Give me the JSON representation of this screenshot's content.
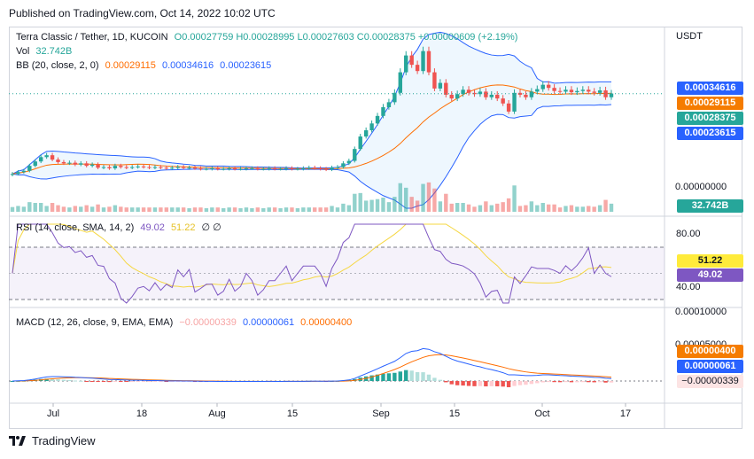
{
  "header": {
    "published": "Published on TradingView.com, Oct 14, 2022 10:02 UTC"
  },
  "legend": {
    "symbol": "Terra Classic / Tether, 1D, KUCOIN",
    "ohlc": "O0.00027759 H0.00028995 L0.00027603 C0.00028375 +0.00000609 (+2.19%)",
    "vol_label": "Vol",
    "vol_value": "32.742B",
    "bb_label": "BB (20, close, 2, 0)",
    "bb_basis": "0.00029115",
    "bb_upper": "0.00034616",
    "bb_lower": "0.00023615",
    "rsi_label": "RSI (14, close, SMA, 14, 2)",
    "rsi_value": "49.02",
    "rsi_sma": "51.22",
    "rsi_extra": "∅ ∅",
    "macd_label": "MACD (12, 26, close, 9, EMA, EMA)",
    "macd_hist": "−0.00000339",
    "macd_line": "0.00000061",
    "macd_signal": "0.00000400"
  },
  "price_axis": {
    "currency": "USDT",
    "zero": "0.00000000",
    "tag_upper": "0.00034616",
    "tag_basis": "0.00029115",
    "tag_close": "0.00028375",
    "tag_lower": "0.00023615",
    "tag_vol": "32.742B"
  },
  "rsi_axis": {
    "top": "80.00",
    "bottom": "40.00",
    "tag_sma": "51.22",
    "tag_rsi": "49.02"
  },
  "macd_axis": {
    "top": "0.00010000",
    "mid": "0.00005000",
    "tag_signal": "0.00000400",
    "tag_line": "0.00000061",
    "tag_hist": "−0.00000339"
  },
  "x_axis": [
    "Jul",
    "18",
    "Aug",
    "15",
    "Sep",
    "15",
    "Oct",
    "17"
  ],
  "footer": {
    "brand": "TradingView"
  },
  "colors": {
    "up": "#26a69a",
    "down": "#ef5350",
    "basis": "#ff6d00",
    "band": "#2962ff",
    "rsi": "#7e57c2",
    "rsi_sma": "#ffeb3b",
    "tag_basis": "#f57c00",
    "tag_close": "#26a69a",
    "tag_band": "#2962ff"
  },
  "chart_data": [
    {
      "type": "candlestick",
      "title": "Terra Classic / Tether, 1D, KUCOIN",
      "x_start": "2022-06-25",
      "period": "1D",
      "close": [
        0.000155,
        0.000158,
        0.00016,
        0.000168,
        0.000175,
        0.000182,
        0.000185,
        0.000178,
        0.000174,
        0.000172,
        0.000173,
        0.00017,
        0.000172,
        0.000168,
        0.00017,
        0.000165,
        0.000166,
        0.000164,
        0.000168,
        0.000166,
        0.000165,
        0.000166,
        0.000167,
        0.000166,
        0.000165,
        0.000166,
        0.000165,
        0.000164,
        0.000165,
        0.000166,
        0.000165,
        0.000165,
        0.000164,
        0.000163,
        0.000163,
        0.000164,
        0.000163,
        0.000163,
        0.000164,
        0.000163,
        0.000163,
        0.000164,
        0.000164,
        0.000163,
        0.000163,
        0.000164,
        0.000163,
        0.000163,
        0.000164,
        0.000163,
        0.000163,
        0.000164,
        0.000165,
        0.000164,
        0.000163,
        0.000162,
        0.000165,
        0.000166,
        0.000172,
        0.000176,
        0.000195,
        0.000215,
        0.000225,
        0.000236,
        0.000248,
        0.000262,
        0.00027,
        0.000285,
        0.000318,
        0.000345,
        0.00033,
        0.00032,
        0.000352,
        0.000318,
        0.000292,
        0.000301,
        0.000282,
        0.000276,
        0.000283,
        0.00029,
        0.000285,
        0.000283,
        0.000287,
        0.000278,
        0.000282,
        0.000276,
        0.000268,
        0.000255,
        0.000285,
        0.000282,
        0.000278,
        0.000287,
        0.000291,
        0.000298,
        0.000293,
        0.000288,
        0.000287,
        0.00029,
        0.000286,
        0.000288,
        0.00029,
        0.000287,
        0.000285,
        0.000289,
        0.000278,
        0.000284
      ],
      "volume_last": "32.742B",
      "bb": {
        "basis": 0.00029115,
        "upper": 0.00034616,
        "lower": 0.00023615
      },
      "ylim": [
        0,
        0.00037
      ]
    },
    {
      "type": "line",
      "title": "RSI (14, close, SMA, 14, 2)",
      "series": [
        {
          "name": "RSI",
          "last": 49.02
        },
        {
          "name": "RSI-based MA",
          "last": 51.22
        }
      ],
      "bands": [
        30,
        70
      ],
      "ylim": [
        20,
        90
      ]
    },
    {
      "type": "line",
      "title": "MACD (12, 26, close, 9, EMA, EMA)",
      "series": [
        {
          "name": "MACD",
          "last": 6.1e-07
        },
        {
          "name": "Signal",
          "last": 4e-06
        },
        {
          "name": "Histogram",
          "last": -3.39e-06
        }
      ],
      "ylim": [
        -3e-05,
        0.00012
      ]
    }
  ]
}
